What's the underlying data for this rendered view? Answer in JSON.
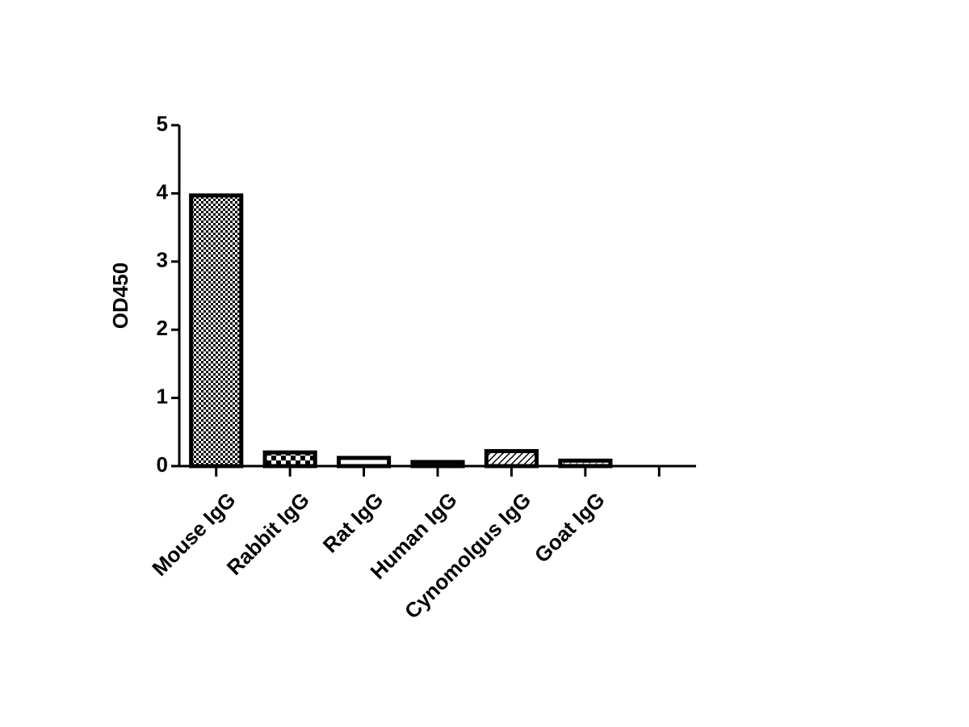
{
  "chart_data": {
    "type": "bar",
    "y_label": "OD450",
    "categories": [
      "Mouse IgG",
      "Rabbit IgG",
      "Rat IgG",
      "Human IgG",
      "Cynomolgus IgG",
      "Goat IgG",
      null
    ],
    "values": [
      3.97,
      0.2,
      0.12,
      0.06,
      0.22,
      0.08,
      null
    ],
    "color": "#000000",
    "ylim": [
      0,
      5
    ],
    "yticks": [
      0,
      1,
      2,
      3,
      4,
      5
    ],
    "grid": false
  }
}
